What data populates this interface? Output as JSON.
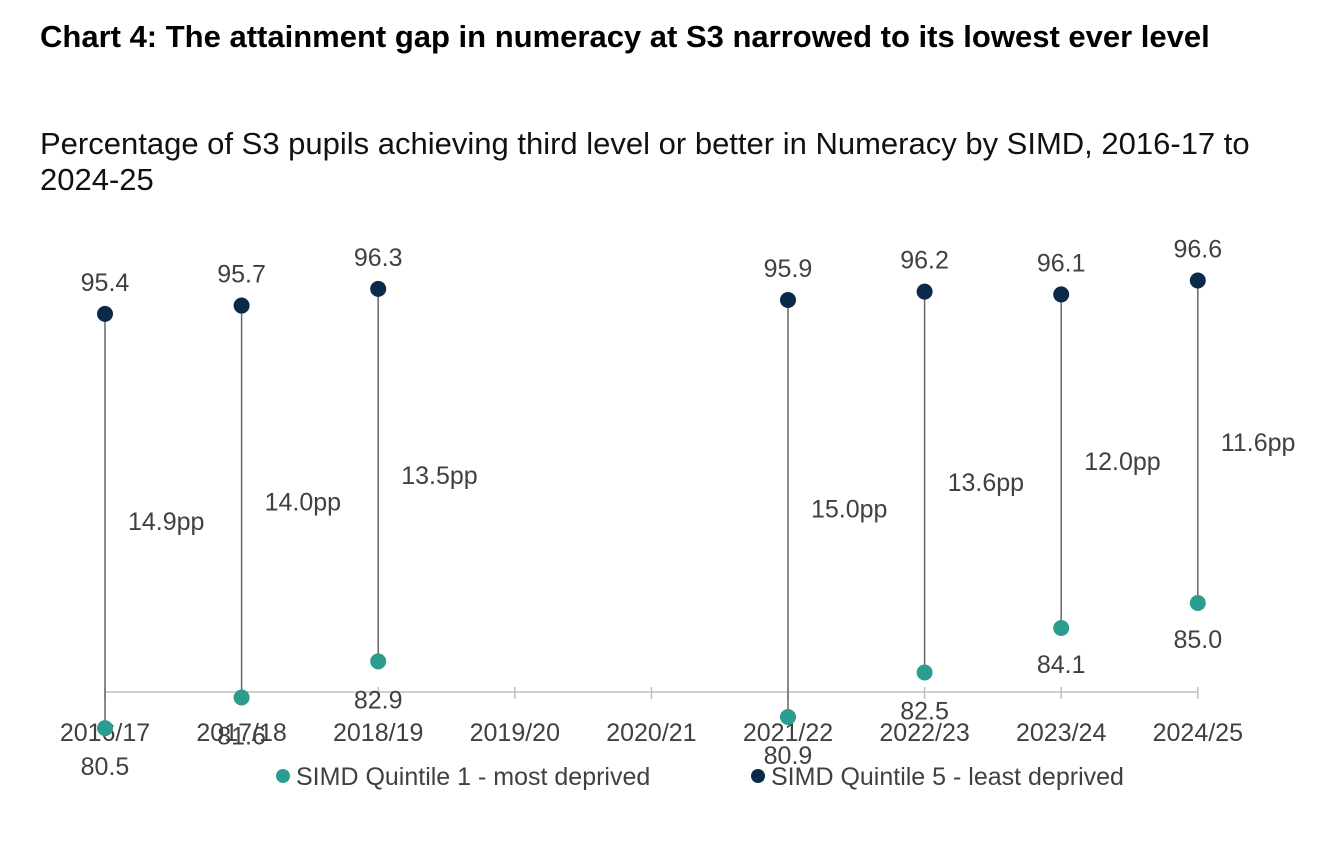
{
  "title": "Chart 4: The attainment gap in numeracy at S3 narrowed to its lowest ever level",
  "subtitle": "Percentage of S3 pupils achieving third level or better in Numeracy by SIMD, 2016-17 to 2024-25",
  "colors": {
    "q1": "#2a9d8f",
    "q5": "#0b2a4a",
    "connector": "#666666",
    "axis": "#bfbfbf",
    "text": "#404040"
  },
  "chart_data": {
    "type": "dumbbell",
    "categories": [
      "2016/17",
      "2017/18",
      "2018/19",
      "2019/20",
      "2020/21",
      "2021/22",
      "2022/23",
      "2023/24",
      "2024/25"
    ],
    "series": [
      {
        "name": "SIMD Quintile 1 - most deprived",
        "values": [
          80.5,
          81.6,
          82.9,
          null,
          null,
          80.9,
          82.5,
          84.1,
          85.0
        ],
        "labels": [
          "80.5",
          "81.6",
          "82.9",
          null,
          null,
          "80.9",
          "82.5",
          "84.1",
          "85.0"
        ]
      },
      {
        "name": "SIMD Quintile 5 - least deprived",
        "values": [
          95.4,
          95.7,
          96.3,
          null,
          null,
          95.9,
          96.2,
          96.1,
          96.6
        ],
        "labels": [
          "95.4",
          "95.7",
          "96.3",
          null,
          null,
          "95.9",
          "96.2",
          "96.1",
          "96.6"
        ]
      }
    ],
    "gap_labels": [
      "14.9pp",
      "14.0pp",
      "13.5pp",
      null,
      null,
      "15.0pp",
      "13.6pp",
      "12.0pp",
      "11.6pp"
    ],
    "ylim": [
      70,
      100
    ],
    "grid": false,
    "legend_position": "bottom"
  }
}
